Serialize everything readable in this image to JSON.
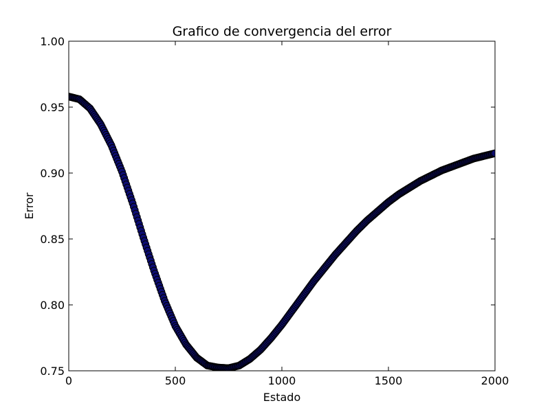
{
  "chart_data": {
    "type": "scatter",
    "title": "Grafico de convergencia del error",
    "xlabel": "Estado",
    "ylabel": "Error",
    "xlim": [
      0,
      2000
    ],
    "ylim": [
      0.75,
      1.0
    ],
    "xticks": [
      0,
      500,
      1000,
      1500,
      2000
    ],
    "xtick_labels": [
      "0",
      "500",
      "1000",
      "1500",
      "2000"
    ],
    "yticks": [
      0.75,
      0.8,
      0.85,
      0.9,
      0.95,
      1.0
    ],
    "ytick_labels": [
      "0.75",
      "0.80",
      "0.85",
      "0.90",
      "0.95",
      "1.00"
    ],
    "grid": false,
    "series": [
      {
        "marker_fill": "#0d0d73",
        "marker_edge": "#000000",
        "x": [
          0,
          50,
          100,
          150,
          200,
          250,
          300,
          350,
          400,
          450,
          500,
          550,
          600,
          650,
          700,
          750,
          800,
          850,
          900,
          950,
          1000,
          1050,
          1100,
          1150,
          1200,
          1250,
          1300,
          1350,
          1400,
          1450,
          1500,
          1550,
          1600,
          1650,
          1700,
          1750,
          1800,
          1850,
          1900,
          1950,
          2000
        ],
        "y": [
          0.958,
          0.956,
          0.949,
          0.937,
          0.921,
          0.901,
          0.877,
          0.851,
          0.826,
          0.803,
          0.784,
          0.77,
          0.76,
          0.754,
          0.7525,
          0.752,
          0.754,
          0.759,
          0.766,
          0.775,
          0.785,
          0.796,
          0.807,
          0.818,
          0.828,
          0.838,
          0.847,
          0.856,
          0.864,
          0.871,
          0.878,
          0.884,
          0.889,
          0.894,
          0.898,
          0.902,
          0.905,
          0.908,
          0.911,
          0.913,
          0.915
        ]
      }
    ]
  }
}
